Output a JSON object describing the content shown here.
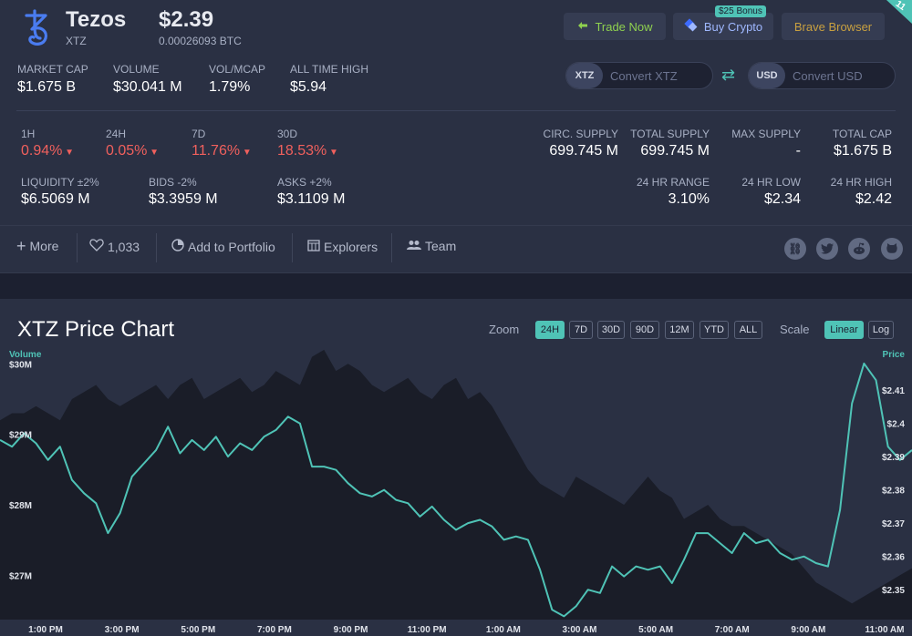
{
  "coin": {
    "name": "Tezos",
    "symbol": "XTZ",
    "price": "$2.39",
    "btc_price": "0.00026093 BTC"
  },
  "top_stats": [
    {
      "label": "MARKET CAP",
      "value": "$1.675 B"
    },
    {
      "label": "VOLUME",
      "value": "$30.041 M"
    },
    {
      "label": "VOL/MCAP",
      "value": "1.79%"
    },
    {
      "label": "ALL TIME HIGH",
      "value": "$5.94"
    }
  ],
  "buttons": {
    "trade": "Trade Now",
    "buy": "Buy Crypto",
    "buy_badge": "$25 Bonus",
    "brave": "Brave Browser",
    "corner_badge": "11"
  },
  "converter": {
    "from_tag": "XTZ",
    "from_placeholder": "Convert XTZ",
    "to_tag": "USD",
    "to_placeholder": "Convert USD"
  },
  "changes": [
    {
      "label": "1H",
      "value": "0.94%"
    },
    {
      "label": "24H",
      "value": "0.05%"
    },
    {
      "label": "7D",
      "value": "11.76%"
    },
    {
      "label": "30D",
      "value": "18.53%"
    }
  ],
  "liquidity": [
    {
      "label": "LIQUIDITY ±2%",
      "value": "$6.5069 M"
    },
    {
      "label": "BIDS -2%",
      "value": "$3.3959 M"
    },
    {
      "label": "ASKS +2%",
      "value": "$3.1109 M"
    }
  ],
  "supply": [
    {
      "label": "CIRC. SUPPLY",
      "value": "699.745 M"
    },
    {
      "label": "TOTAL SUPPLY",
      "value": "699.745 M"
    },
    {
      "label": "MAX SUPPLY",
      "value": "-"
    },
    {
      "label": "TOTAL CAP",
      "value": "$1.675 B"
    }
  ],
  "range": [
    {
      "label": "24 HR RANGE",
      "value": "3.10%"
    },
    {
      "label": "24 HR LOW",
      "value": "$2.34"
    },
    {
      "label": "24 HR HIGH",
      "value": "$2.42"
    }
  ],
  "actions": {
    "more": "More",
    "likes": "1,033",
    "portfolio": "Add to Portfolio",
    "explorers": "Explorers",
    "team": "Team"
  },
  "chart_panel": {
    "title": "XTZ Price Chart",
    "zoom_label": "Zoom",
    "zoom_options": [
      "24H",
      "7D",
      "30D",
      "90D",
      "12M",
      "YTD",
      "ALL"
    ],
    "scale_label": "Scale",
    "scale_options": [
      "Linear",
      "Log"
    ],
    "colors": {
      "price_line": "#4fc3b6",
      "volume_area": "#1a1d28",
      "accent": "#4fc3b6",
      "negative": "#f0605d"
    }
  },
  "chart_data": {
    "type": "line",
    "title": "XTZ Price Chart",
    "ylabel_left": "Volume",
    "ylabel_right": "Price",
    "volume_ticks": [
      "$30M",
      "$29M",
      "$28M",
      "$27M"
    ],
    "price_ticks": [
      "$2.41",
      "$2.4",
      "$2.39",
      "$2.38",
      "$2.37",
      "$2.36",
      "$2.35"
    ],
    "x_ticks": [
      "1:00 PM",
      "3:00 PM",
      "5:00 PM",
      "7:00 PM",
      "9:00 PM",
      "11:00 PM",
      "1:00 AM",
      "3:00 AM",
      "5:00 AM",
      "7:00 AM",
      "9:00 AM",
      "11:00 AM"
    ],
    "price_range": [
      2.341,
      2.421
    ],
    "volume_range": [
      26.5,
      30.25
    ],
    "series": [
      {
        "values": [
          2.395,
          2.393,
          2.397,
          2.394,
          2.389,
          2.393,
          2.383,
          2.379,
          2.376,
          2.367,
          2.373,
          2.384,
          2.388,
          2.392,
          2.399,
          2.391,
          2.395,
          2.392,
          2.396,
          2.39,
          2.394,
          2.392,
          2.396,
          2.398,
          2.402,
          2.4,
          2.387,
          2.387,
          2.386,
          2.382,
          2.379,
          2.378,
          2.38,
          2.377,
          2.376,
          2.372,
          2.375,
          2.371,
          2.368,
          2.37,
          2.371,
          2.369,
          2.365,
          2.366,
          2.365,
          2.356,
          2.344,
          2.342,
          2.345,
          2.35,
          2.349,
          2.357,
          2.354,
          2.357,
          2.356,
          2.357,
          2.352,
          2.359,
          2.367,
          2.367,
          2.364,
          2.361,
          2.367,
          2.364,
          2.365,
          2.361,
          2.359,
          2.36,
          2.358,
          2.357,
          2.374,
          2.406,
          2.418,
          2.413,
          2.393,
          2.389,
          2.392
        ]
      },
      {
        "name": "Volume",
        "values": [
          29.2,
          29.3,
          29.3,
          29.4,
          29.3,
          29.2,
          29.5,
          29.6,
          29.7,
          29.5,
          29.4,
          29.5,
          29.6,
          29.7,
          29.5,
          29.7,
          29.8,
          29.5,
          29.6,
          29.7,
          29.8,
          29.6,
          29.7,
          29.9,
          29.8,
          29.7,
          30.1,
          30.2,
          29.9,
          30.0,
          29.9,
          29.7,
          29.6,
          29.7,
          29.8,
          29.6,
          29.5,
          29.7,
          29.8,
          29.5,
          29.6,
          29.4,
          29.1,
          28.8,
          28.5,
          28.3,
          28.2,
          28.1,
          28.4,
          28.3,
          28.2,
          28.1,
          28.0,
          28.2,
          28.4,
          28.2,
          28.1,
          27.8,
          27.9,
          28.0,
          27.8,
          27.7,
          27.7,
          27.6,
          27.5,
          27.4,
          27.3,
          27.1,
          26.9,
          26.8,
          26.7,
          26.6,
          26.7,
          26.8,
          26.9,
          27.0,
          27.1
        ]
      }
    ],
    "xlim": [
      "1:00 PM",
      "11:00 AM"
    ],
    "grid": false
  }
}
